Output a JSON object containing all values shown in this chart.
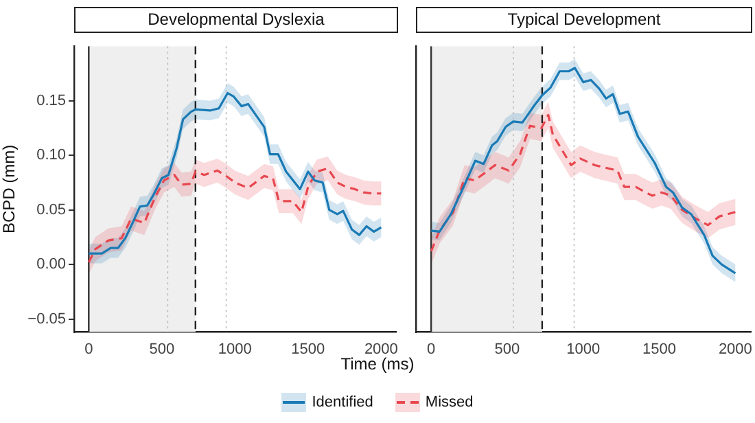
{
  "chart_data": [
    {
      "type": "line",
      "title": "Developmental Dyslexia",
      "xlabel": "Time (ms)",
      "ylabel": "BCPD (mm)",
      "legend": "bottom",
      "marker": "none",
      "grid": false,
      "xlim": [
        -100,
        2100
      ],
      "xticks": [
        0,
        500,
        1000,
        1500,
        2000
      ],
      "ylim": [
        -0.062,
        0.2
      ],
      "yticks": [
        {
          "value": -0.05,
          "label": "−0.05"
        },
        {
          "value": 0,
          "label": "0.00"
        },
        {
          "value": 0.05,
          "label": "0.05"
        },
        {
          "value": 0.1,
          "label": "0.10"
        },
        {
          "value": 0.15,
          "label": "0.15"
        }
      ],
      "bands": [
        {
          "axis": "x",
          "from": 0,
          "to": 730,
          "color": "#efefef"
        }
      ],
      "ref_lines": [
        {
          "axis": "x",
          "value": 0,
          "color": "#333333",
          "line_style": "solid"
        },
        {
          "axis": "x",
          "value": 540,
          "color": "#bbbbbb",
          "line_style": "dotted"
        },
        {
          "axis": "x",
          "value": 940,
          "color": "#bbbbbb",
          "line_style": "dotted"
        },
        {
          "axis": "x",
          "value": 730,
          "color": "#222222",
          "line_style": "dashed"
        }
      ],
      "series": [
        {
          "name": "Identified",
          "color": "#1a7ab5",
          "line_style": "solid",
          "x": [
            0,
            90,
            150,
            200,
            250,
            300,
            350,
            400,
            440,
            500,
            545,
            600,
            645,
            700,
            730,
            830,
            890,
            950,
            990,
            1045,
            1090,
            1200,
            1240,
            1295,
            1350,
            1445,
            1500,
            1545,
            1600,
            1645,
            1700,
            1740,
            1800,
            1850,
            1900,
            1950,
            2000
          ],
          "values": [
            0.01,
            0.01,
            0.015,
            0.015,
            0.024,
            0.038,
            0.053,
            0.054,
            0.063,
            0.079,
            0.082,
            0.106,
            0.133,
            0.14,
            0.142,
            0.141,
            0.143,
            0.157,
            0.154,
            0.145,
            0.147,
            0.126,
            0.101,
            0.101,
            0.085,
            0.069,
            0.085,
            0.077,
            0.075,
            0.05,
            0.046,
            0.049,
            0.032,
            0.027,
            0.035,
            0.03,
            0.034
          ],
          "lower": [
            0.001,
            0.001,
            0.006,
            0.006,
            0.015,
            0.029,
            0.044,
            0.045,
            0.054,
            0.07,
            0.073,
            0.097,
            0.124,
            0.131,
            0.133,
            0.132,
            0.134,
            0.148,
            0.145,
            0.136,
            0.138,
            0.117,
            0.092,
            0.092,
            0.076,
            0.06,
            0.076,
            0.068,
            0.066,
            0.041,
            0.037,
            0.04,
            0.023,
            0.018,
            0.026,
            0.021,
            0.025
          ],
          "upper": [
            0.019,
            0.019,
            0.024,
            0.024,
            0.033,
            0.047,
            0.062,
            0.063,
            0.072,
            0.088,
            0.091,
            0.115,
            0.142,
            0.149,
            0.151,
            0.15,
            0.152,
            0.166,
            0.163,
            0.154,
            0.156,
            0.135,
            0.11,
            0.11,
            0.094,
            0.078,
            0.094,
            0.086,
            0.084,
            0.059,
            0.055,
            0.058,
            0.041,
            0.036,
            0.044,
            0.039,
            0.043
          ]
        },
        {
          "name": "Missed",
          "color": "#e8474f",
          "line_style": "dashed",
          "x": [
            0,
            45,
            135,
            225,
            290,
            380,
            455,
            515,
            585,
            635,
            700,
            730,
            790,
            880,
            940,
            1000,
            1090,
            1200,
            1260,
            1300,
            1395,
            1455,
            1500,
            1560,
            1635,
            1700,
            1760,
            1820,
            1880,
            1940,
            2000
          ],
          "values": [
            0.002,
            0.014,
            0.022,
            0.024,
            0.042,
            0.038,
            0.062,
            0.077,
            0.082,
            0.073,
            0.074,
            0.085,
            0.082,
            0.086,
            0.081,
            0.075,
            0.07,
            0.081,
            0.079,
            0.058,
            0.058,
            0.048,
            0.071,
            0.085,
            0.088,
            0.075,
            0.071,
            0.069,
            0.066,
            0.065,
            0.065
          ],
          "lower": [
            -0.009,
            0.003,
            0.011,
            0.013,
            0.031,
            0.027,
            0.051,
            0.066,
            0.071,
            0.062,
            0.063,
            0.074,
            0.071,
            0.075,
            0.07,
            0.064,
            0.059,
            0.07,
            0.068,
            0.047,
            0.047,
            0.037,
            0.06,
            0.074,
            0.077,
            0.064,
            0.06,
            0.058,
            0.055,
            0.054,
            0.054
          ],
          "upper": [
            0.013,
            0.025,
            0.033,
            0.035,
            0.053,
            0.049,
            0.073,
            0.088,
            0.093,
            0.084,
            0.085,
            0.096,
            0.093,
            0.097,
            0.092,
            0.086,
            0.081,
            0.092,
            0.09,
            0.069,
            0.069,
            0.059,
            0.082,
            0.096,
            0.099,
            0.086,
            0.082,
            0.08,
            0.077,
            0.076,
            0.076
          ]
        }
      ]
    },
    {
      "type": "line",
      "title": "Typical Development",
      "marker": "none",
      "grid": false,
      "tick_labels": "x",
      "xlim": [
        -100,
        2100
      ],
      "xticks": [
        0,
        500,
        1000,
        1500,
        2000
      ],
      "ylim": [
        -0.062,
        0.2
      ],
      "bands": [
        {
          "axis": "x",
          "from": 0,
          "to": 730,
          "color": "#efefef"
        }
      ],
      "ref_lines": [
        {
          "axis": "x",
          "value": 0,
          "color": "#333333",
          "line_style": "solid"
        },
        {
          "axis": "x",
          "value": 540,
          "color": "#bbbbbb",
          "line_style": "dotted"
        },
        {
          "axis": "x",
          "value": 940,
          "color": "#bbbbbb",
          "line_style": "dotted"
        },
        {
          "axis": "x",
          "value": 730,
          "color": "#222222",
          "line_style": "dashed"
        }
      ],
      "series": [
        {
          "color": "#1a7ab5",
          "line_style": "solid",
          "x": [
            0,
            55,
            130,
            220,
            290,
            345,
            400,
            435,
            490,
            540,
            600,
            680,
            730,
            785,
            845,
            905,
            945,
            1000,
            1050,
            1105,
            1150,
            1195,
            1240,
            1295,
            1360,
            1470,
            1545,
            1590,
            1650,
            1710,
            1795,
            1850,
            1910,
            2000
          ],
          "values": [
            0.031,
            0.03,
            0.046,
            0.073,
            0.095,
            0.092,
            0.109,
            0.113,
            0.126,
            0.131,
            0.13,
            0.146,
            0.155,
            0.162,
            0.177,
            0.177,
            0.18,
            0.167,
            0.169,
            0.161,
            0.152,
            0.156,
            0.138,
            0.14,
            0.117,
            0.093,
            0.071,
            0.066,
            0.052,
            0.046,
            0.027,
            0.008,
            0.0,
            -0.008
          ],
          "lower": [
            0.023,
            0.022,
            0.038,
            0.065,
            0.087,
            0.084,
            0.101,
            0.105,
            0.118,
            0.123,
            0.122,
            0.138,
            0.147,
            0.154,
            0.169,
            0.169,
            0.172,
            0.159,
            0.161,
            0.153,
            0.144,
            0.148,
            0.13,
            0.132,
            0.109,
            0.085,
            0.063,
            0.058,
            0.044,
            0.038,
            0.019,
            0.0,
            -0.008,
            -0.016
          ],
          "upper": [
            0.039,
            0.038,
            0.054,
            0.081,
            0.103,
            0.1,
            0.117,
            0.121,
            0.134,
            0.139,
            0.138,
            0.154,
            0.163,
            0.17,
            0.185,
            0.185,
            0.188,
            0.175,
            0.177,
            0.169,
            0.16,
            0.164,
            0.146,
            0.148,
            0.125,
            0.101,
            0.079,
            0.074,
            0.06,
            0.054,
            0.035,
            0.016,
            0.008,
            0.0
          ]
        },
        {
          "color": "#e8474f",
          "line_style": "dashed",
          "x": [
            0,
            55,
            145,
            220,
            285,
            345,
            420,
            510,
            585,
            650,
            725,
            770,
            800,
            860,
            920,
            980,
            1075,
            1165,
            1225,
            1270,
            1345,
            1410,
            1455,
            1515,
            1575,
            1650,
            1740,
            1820,
            1895,
            2000
          ],
          "values": [
            0.012,
            0.031,
            0.048,
            0.079,
            0.077,
            0.083,
            0.091,
            0.086,
            0.101,
            0.127,
            0.125,
            0.137,
            0.119,
            0.105,
            0.091,
            0.097,
            0.091,
            0.088,
            0.086,
            0.071,
            0.071,
            0.066,
            0.063,
            0.066,
            0.063,
            0.05,
            0.042,
            0.036,
            0.044,
            0.048
          ],
          "lower": [
            0.0,
            0.019,
            0.036,
            0.067,
            0.065,
            0.071,
            0.079,
            0.074,
            0.089,
            0.115,
            0.113,
            0.125,
            0.107,
            0.093,
            0.079,
            0.085,
            0.079,
            0.076,
            0.074,
            0.059,
            0.059,
            0.054,
            0.051,
            0.054,
            0.051,
            0.038,
            0.03,
            0.024,
            0.032,
            0.036
          ],
          "upper": [
            0.024,
            0.043,
            0.06,
            0.091,
            0.089,
            0.095,
            0.103,
            0.098,
            0.113,
            0.139,
            0.137,
            0.149,
            0.131,
            0.117,
            0.103,
            0.109,
            0.103,
            0.1,
            0.098,
            0.083,
            0.083,
            0.078,
            0.075,
            0.078,
            0.075,
            0.062,
            0.054,
            0.048,
            0.056,
            0.06
          ]
        }
      ]
    }
  ]
}
